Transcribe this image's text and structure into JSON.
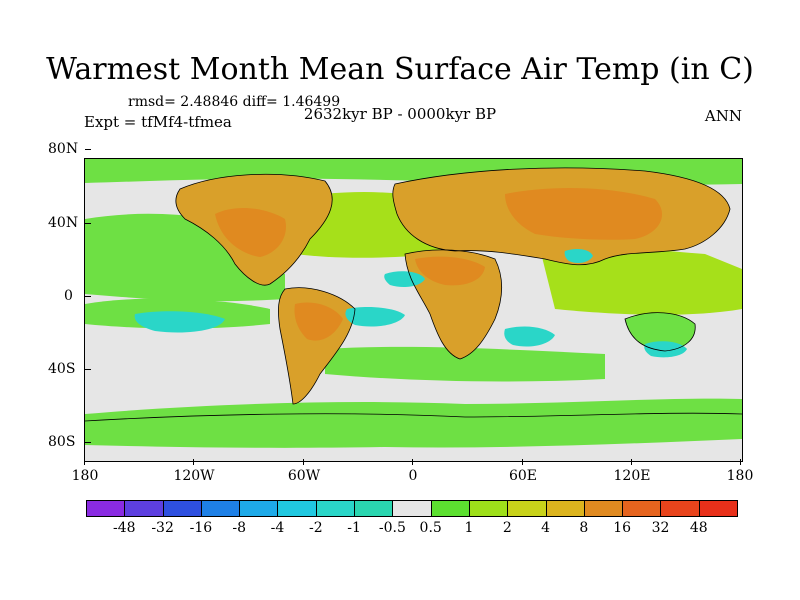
{
  "title": "Warmest Month Mean Surface Air Temp (in C)",
  "stats": "rmsd= 2.48846 diff= 1.46499",
  "experiment": "Expt = tfMf4-tfmea",
  "period": "2632kyr BP - 0000kyr BP",
  "season": "ANN",
  "colors": {
    "near_zero": "#e6e6e6",
    "land_warm": "#d9a02a",
    "land_hot": "#e08a20",
    "ocean_pos": "#6ee044",
    "ocean_pos2": "#a6e01a",
    "cool": "#2ad6c8"
  },
  "map": {
    "x_ticks": [
      "180",
      "120W",
      "60W",
      "0",
      "60E",
      "120E",
      "180"
    ],
    "y_ticks": [
      "80N",
      "40N",
      "0",
      "40S",
      "80S"
    ]
  },
  "colorbar": {
    "colors": [
      "#8a2be2",
      "#5d3fe0",
      "#2e50e0",
      "#1e80e6",
      "#1eaae8",
      "#20c8e0",
      "#2ad6c8",
      "#2ad6b0",
      "#e6e6e6",
      "#5ce030",
      "#9ee01a",
      "#c8d21a",
      "#dcb41e",
      "#e08a20",
      "#e6641e",
      "#e8441c",
      "#e8301a"
    ],
    "labels": [
      "-48",
      "-32",
      "-16",
      "-8",
      "-4",
      "-2",
      "-1",
      "-0.5",
      "0.5",
      "1",
      "2",
      "4",
      "8",
      "16",
      "32",
      "48"
    ]
  }
}
